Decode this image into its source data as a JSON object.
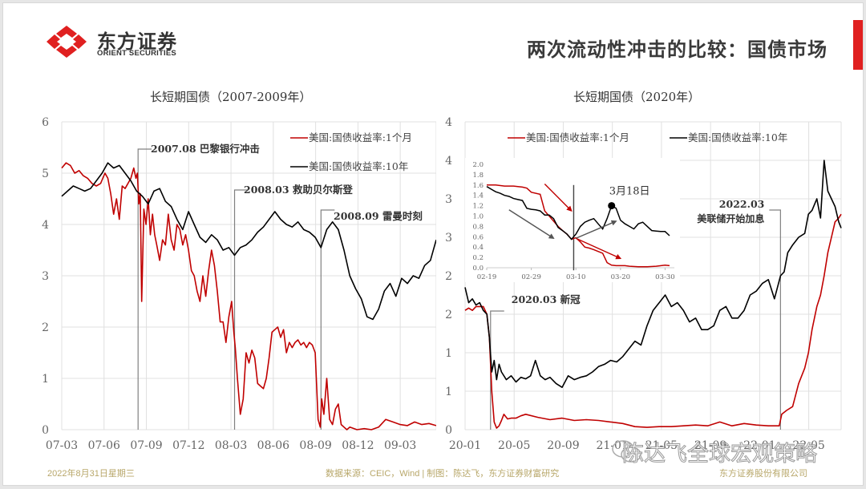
{
  "header": {
    "logo_cn": "东方证券",
    "logo_en": "ORIENT SECURITIES",
    "page_title": "两次流动性冲击的比较：国债市场",
    "accent_color": "#e02020"
  },
  "footer": {
    "date": "2022年8月31日星期三",
    "source": "数据来源：CEIC，Wind | 制图：陈达飞，东方证券财富研究",
    "company": "东方证券股份有限公司",
    "watermark": "陈达飞全球宏观策略"
  },
  "colors": {
    "series_1m": "#c00000",
    "series_10y": "#000000",
    "grid": "#e0e0e0",
    "annotation_line": "#808080",
    "footer_text": "#b8a76a"
  },
  "chart_data": [
    {
      "id": "left",
      "type": "line",
      "title": "长短期国债（2007-2009年）",
      "xlabel": "",
      "ylabel": "",
      "ylim": [
        0,
        6
      ],
      "yticks": [
        0,
        1,
        2,
        3,
        4,
        5,
        6
      ],
      "ytick_labels": [
        "0",
        "1",
        "2",
        "3",
        "4",
        "5",
        "6"
      ],
      "xtick_labels": [
        "07-03",
        "07-06",
        "07-09",
        "07-12",
        "08-03",
        "08-06",
        "08-09",
        "08-12",
        "09-03"
      ],
      "x_range": [
        0,
        26
      ],
      "grid": true,
      "legend": [
        "美国:国债收益率:1个月",
        "美国:国债收益率:10年"
      ],
      "legend_position": "top-right",
      "annotations": [
        {
          "label": "2007.08 巴黎银行冲击",
          "x": 5.3
        },
        {
          "label": "2008.03 救助贝尔斯登",
          "x": 12.0
        },
        {
          "label": "2008.09 雷曼时刻",
          "x": 18.0
        }
      ],
      "series": [
        {
          "name": "美国:国债收益率:1个月",
          "color": "#c00000",
          "x": [
            0,
            0.3,
            0.6,
            0.9,
            1.2,
            1.5,
            1.8,
            2.1,
            2.4,
            2.7,
            3.0,
            3.2,
            3.4,
            3.6,
            3.8,
            4.0,
            4.2,
            4.4,
            4.6,
            4.8,
            5.0,
            5.15,
            5.25,
            5.35,
            5.45,
            5.55,
            5.7,
            5.85,
            6.0,
            6.15,
            6.3,
            6.45,
            6.6,
            6.8,
            7.0,
            7.2,
            7.4,
            7.6,
            7.8,
            8.0,
            8.2,
            8.4,
            8.6,
            8.8,
            9.0,
            9.2,
            9.4,
            9.6,
            9.8,
            10.0,
            10.2,
            10.4,
            10.6,
            10.8,
            11.0,
            11.2,
            11.4,
            11.6,
            11.8,
            11.95,
            12.05,
            12.2,
            12.4,
            12.6,
            12.8,
            13.0,
            13.2,
            13.4,
            13.6,
            13.8,
            14.0,
            14.2,
            14.4,
            14.6,
            14.8,
            15.0,
            15.2,
            15.4,
            15.6,
            15.8,
            16.0,
            16.2,
            16.4,
            16.6,
            16.8,
            17.0,
            17.2,
            17.4,
            17.6,
            17.8,
            17.95,
            18.05,
            18.2,
            18.4,
            18.6,
            18.8,
            19.0,
            19.2,
            19.4,
            19.6,
            19.8,
            20.0,
            20.5,
            21.0,
            21.5,
            22.0,
            22.5,
            23.0,
            23.5,
            24.0,
            24.5,
            25.0,
            25.5,
            26.0
          ],
          "values": [
            5.1,
            5.2,
            5.15,
            5.0,
            5.05,
            4.95,
            4.9,
            4.8,
            4.75,
            4.8,
            5.0,
            4.9,
            4.6,
            4.2,
            4.5,
            4.1,
            4.75,
            4.7,
            4.8,
            4.9,
            5.1,
            4.9,
            5.0,
            4.4,
            4.6,
            2.5,
            4.3,
            4.0,
            4.5,
            3.8,
            4.2,
            3.8,
            3.6,
            3.3,
            3.7,
            3.6,
            4.2,
            3.7,
            3.5,
            4.0,
            3.9,
            3.6,
            3.8,
            3.5,
            3.1,
            3.0,
            2.7,
            2.5,
            3.0,
            2.6,
            3.1,
            3.5,
            3.2,
            2.7,
            2.1,
            2.1,
            1.7,
            2.2,
            2.5,
            1.9,
            1.6,
            1.0,
            0.3,
            0.6,
            1.5,
            1.3,
            1.55,
            1.4,
            0.9,
            0.85,
            0.8,
            1.0,
            1.4,
            1.9,
            1.95,
            2.0,
            1.8,
            1.95,
            1.5,
            1.7,
            1.6,
            1.7,
            1.75,
            1.65,
            1.7,
            1.6,
            1.7,
            1.65,
            1.5,
            0.2,
            0.05,
            0.6,
            0.3,
            1.0,
            0.2,
            0.1,
            0.4,
            0.5,
            0.1,
            0.05,
            0.0,
            0.05,
            0.0,
            0.02,
            0.0,
            0.05,
            0.2,
            0.15,
            0.1,
            0.08,
            0.15,
            0.1,
            0.12,
            0.08
          ]
        },
        {
          "name": "美国:国债收益率:10年",
          "color": "#000000",
          "x": [
            0,
            0.4,
            0.8,
            1.2,
            1.6,
            2.0,
            2.4,
            2.8,
            3.2,
            3.6,
            4.0,
            4.4,
            4.8,
            5.2,
            5.6,
            6.0,
            6.4,
            6.8,
            7.2,
            7.6,
            8.0,
            8.4,
            8.8,
            9.2,
            9.6,
            10.0,
            10.4,
            10.8,
            11.2,
            11.6,
            12.0,
            12.4,
            12.8,
            13.2,
            13.6,
            14.0,
            14.4,
            14.8,
            15.2,
            15.6,
            16.0,
            16.4,
            16.8,
            17.2,
            17.6,
            18.0,
            18.4,
            18.8,
            19.2,
            19.6,
            20.0,
            20.4,
            20.8,
            21.2,
            21.6,
            22.0,
            22.4,
            22.8,
            23.2,
            23.6,
            24.0,
            24.4,
            24.8,
            25.2,
            25.6,
            26.0
          ],
          "values": [
            4.55,
            4.65,
            4.75,
            4.7,
            4.65,
            4.7,
            4.85,
            5.0,
            5.2,
            5.1,
            5.15,
            5.0,
            4.85,
            4.65,
            4.55,
            4.4,
            4.65,
            4.7,
            4.45,
            4.35,
            4.1,
            3.9,
            4.25,
            4.0,
            3.75,
            3.65,
            3.8,
            3.7,
            3.5,
            3.55,
            3.4,
            3.55,
            3.6,
            3.7,
            3.85,
            3.95,
            4.1,
            4.25,
            4.1,
            4.0,
            3.95,
            4.05,
            3.9,
            3.85,
            3.75,
            3.55,
            3.9,
            4.05,
            3.9,
            3.5,
            3.0,
            2.75,
            2.55,
            2.2,
            2.15,
            2.35,
            2.7,
            2.85,
            2.6,
            2.95,
            2.85,
            3.0,
            2.95,
            3.2,
            3.3,
            3.7
          ]
        }
      ]
    },
    {
      "id": "right",
      "type": "line",
      "title": "长短期国债（2020年）",
      "xlabel": "",
      "ylabel": "",
      "ylim": [
        0,
        4
      ],
      "yticks": [
        0,
        0.5,
        1,
        1.5,
        2,
        2.5,
        3,
        3.5,
        4
      ],
      "ytick_labels": [
        "0",
        "1",
        "1",
        "2",
        "2",
        "3",
        "3",
        "4",
        "4"
      ],
      "xtick_labels": [
        "20-01",
        "20-05",
        "20-09",
        "21-01",
        "21-05",
        "21-09",
        "22-01",
        "22-05"
      ],
      "x_range": [
        0,
        31
      ],
      "grid": true,
      "legend": [
        "美国:国债收益率:1个月",
        "美国:国债收益率:10年"
      ],
      "legend_position": "top",
      "annotations": [
        {
          "label": "2020.03 新冠",
          "x": 2.1
        },
        {
          "label": "2022.03 美联储开始加息",
          "x": 26.0
        }
      ],
      "series": [
        {
          "name": "美国:国债收益率:1个月",
          "color": "#c00000",
          "x": [
            0,
            0.3,
            0.6,
            0.9,
            1.2,
            1.5,
            1.8,
            2.0,
            2.2,
            2.4,
            2.6,
            2.8,
            3.0,
            3.2,
            3.5,
            3.8,
            4.2,
            4.6,
            5.0,
            6.0,
            7.0,
            8.0,
            9.0,
            10.0,
            11.0,
            12.0,
            13.0,
            14.0,
            15.0,
            16.0,
            17.0,
            18.0,
            19.0,
            20.0,
            21.0,
            22.0,
            23.0,
            24.0,
            25.0,
            25.9,
            26.1,
            26.5,
            27.0,
            27.5,
            28.0,
            28.3,
            28.6,
            29.0,
            29.3,
            29.6,
            29.9,
            30.2,
            30.5,
            30.8,
            31.0
          ],
          "values": [
            1.55,
            1.58,
            1.55,
            1.6,
            1.6,
            1.6,
            1.5,
            1.2,
            0.5,
            0.1,
            0.02,
            0.05,
            0.12,
            0.2,
            0.14,
            0.15,
            0.15,
            0.18,
            0.2,
            0.16,
            0.13,
            0.15,
            0.12,
            0.13,
            0.12,
            0.1,
            0.08,
            0.04,
            0.03,
            0.04,
            0.04,
            0.05,
            0.06,
            0.05,
            0.1,
            0.05,
            0.08,
            0.06,
            0.05,
            0.05,
            0.2,
            0.25,
            0.3,
            0.6,
            0.8,
            1.0,
            1.3,
            1.6,
            1.75,
            2.0,
            2.3,
            2.5,
            2.7,
            2.75,
            2.8
          ]
        },
        {
          "name": "美国:国债收益率:10年",
          "color": "#000000",
          "x": [
            0,
            0.3,
            0.6,
            0.9,
            1.2,
            1.5,
            1.8,
            2.0,
            2.2,
            2.4,
            2.6,
            2.8,
            3.0,
            3.4,
            3.8,
            4.2,
            4.6,
            5.0,
            5.4,
            5.8,
            6.2,
            6.6,
            7.0,
            7.5,
            8.0,
            8.5,
            9.0,
            9.5,
            10.0,
            10.5,
            11.0,
            11.5,
            12.0,
            12.5,
            13.0,
            13.5,
            14.0,
            14.5,
            15.0,
            15.5,
            16.0,
            16.5,
            17.0,
            17.5,
            18.0,
            18.5,
            19.0,
            19.5,
            20.0,
            20.5,
            21.0,
            21.5,
            22.0,
            22.5,
            23.0,
            23.5,
            24.0,
            24.5,
            25.0,
            25.5,
            26.0,
            26.3,
            26.6,
            27.0,
            27.5,
            28.0,
            28.3,
            28.6,
            29.0,
            29.3,
            29.6,
            29.9,
            30.2,
            30.5,
            30.8,
            31.0
          ],
          "values": [
            1.85,
            1.65,
            1.7,
            1.62,
            1.65,
            1.55,
            1.5,
            1.2,
            0.75,
            0.9,
            0.65,
            0.85,
            0.75,
            0.65,
            0.7,
            0.62,
            0.68,
            0.66,
            0.7,
            0.9,
            0.7,
            0.65,
            0.68,
            0.6,
            0.55,
            0.7,
            0.65,
            0.68,
            0.7,
            0.75,
            0.82,
            0.85,
            0.9,
            0.88,
            0.95,
            1.05,
            1.15,
            1.1,
            1.35,
            1.55,
            1.65,
            1.75,
            1.6,
            1.65,
            1.55,
            1.4,
            1.45,
            1.3,
            1.3,
            1.35,
            1.55,
            1.6,
            1.45,
            1.45,
            1.55,
            1.75,
            1.8,
            1.9,
            1.95,
            1.7,
            2.0,
            2.05,
            2.3,
            2.4,
            2.5,
            2.55,
            2.8,
            2.85,
            3.0,
            2.75,
            3.5,
            3.1,
            3.0,
            2.9,
            2.7,
            2.62
          ]
        }
      ],
      "inset": {
        "type": "line",
        "ylim": [
          0,
          2.0
        ],
        "ytick_labels": [
          "0.0",
          "0.2",
          "0.4",
          "0.6",
          "0.8",
          "1.0",
          "1.2",
          "1.4",
          "1.6",
          "1.8",
          "2.0"
        ],
        "xtick_labels": [
          "02-19",
          "02-29",
          "03-10",
          "03-20",
          "03-30"
        ],
        "x_range": [
          0,
          41
        ],
        "annotation": "3月18日",
        "marker_point": {
          "x": 28,
          "y": 1.2
        },
        "vline_x": 19.5,
        "series": [
          {
            "name": "美国:国债收益率:1个月",
            "color": "#c00000",
            "x": [
              0,
              2,
              4,
              6,
              8,
              9,
              10,
              12,
              13,
              14,
              16,
              17,
              18,
              19,
              20,
              21,
              22,
              23,
              24,
              26,
              27,
              28,
              29,
              30,
              31,
              32,
              34,
              36,
              38,
              40,
              41
            ],
            "values": [
              1.6,
              1.6,
              1.58,
              1.58,
              1.56,
              1.54,
              1.46,
              1.42,
              1.1,
              1.0,
              0.8,
              0.72,
              0.65,
              0.55,
              0.58,
              0.5,
              0.4,
              0.38,
              0.35,
              0.28,
              0.1,
              0.05,
              0.04,
              0.04,
              0.04,
              0.03,
              0.02,
              0.02,
              0.03,
              0.05,
              0.04
            ]
          },
          {
            "name": "美国:国债收益率:10年",
            "color": "#000000",
            "x": [
              0,
              1,
              2,
              3,
              4,
              5,
              6,
              7,
              8,
              9,
              10,
              11,
              12,
              13,
              14,
              15,
              16,
              17,
              18,
              19,
              20,
              21,
              22,
              23,
              24,
              25,
              26,
              27,
              28,
              29,
              30,
              31,
              32,
              33,
              34,
              35,
              36,
              37,
              38,
              39,
              40,
              41
            ],
            "values": [
              1.57,
              1.52,
              1.47,
              1.44,
              1.4,
              1.38,
              1.34,
              1.32,
              1.3,
              1.15,
              1.13,
              1.12,
              1.1,
              1.02,
              1.02,
              0.95,
              0.78,
              0.72,
              0.65,
              0.55,
              0.65,
              0.8,
              0.88,
              0.92,
              0.95,
              0.85,
              0.75,
              0.95,
              1.2,
              1.15,
              0.92,
              0.85,
              0.8,
              0.75,
              0.85,
              0.88,
              0.8,
              0.72,
              0.71,
              0.7,
              0.7,
              0.62
            ]
          }
        ],
        "arrows": [
          {
            "color": "#c00000",
            "from": [
              13,
              1.62
            ],
            "to": [
              19,
              1.1
            ]
          },
          {
            "color": "#c00000",
            "from": [
              20,
              0.57
            ],
            "to": [
              30,
              0.18
            ]
          },
          {
            "color": "#555555",
            "from": [
              5,
              1.12
            ],
            "to": [
              15,
              0.57
            ]
          },
          {
            "color": "#555555",
            "from": [
              20,
              0.57
            ],
            "to": [
              29,
              0.9
            ]
          }
        ]
      }
    }
  ]
}
